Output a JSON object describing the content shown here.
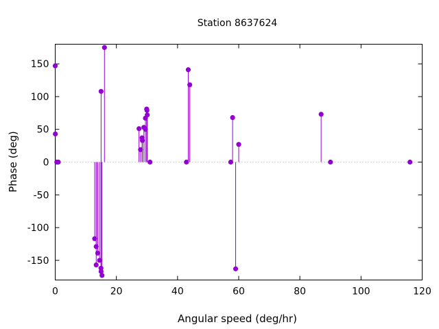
{
  "chart_data": {
    "type": "scatter",
    "title": "Station 8637624",
    "xlabel": "Angular speed (deg/hr)",
    "ylabel": "Phase (deg)",
    "xlim": [
      0,
      120
    ],
    "ylim": [
      -180,
      180
    ],
    "xticks": [
      0,
      20,
      40,
      60,
      80,
      100,
      120
    ],
    "yticks": [
      -150,
      -100,
      -50,
      0,
      50,
      100,
      150
    ],
    "grid": false,
    "zero_line": "dotted",
    "style": "impulses with points",
    "color": "#9400d3",
    "points": [
      {
        "x": 0.0,
        "y": 147
      },
      {
        "x": 0.04,
        "y": 43
      },
      {
        "x": 0.5,
        "y": 0
      },
      {
        "x": 0.6,
        "y": 0
      },
      {
        "x": 1.0,
        "y": 0
      },
      {
        "x": 12.9,
        "y": -117
      },
      {
        "x": 13.4,
        "y": -157
      },
      {
        "x": 13.4,
        "y": -129
      },
      {
        "x": 13.9,
        "y": -139
      },
      {
        "x": 14.5,
        "y": -150
      },
      {
        "x": 14.96,
        "y": -162
      },
      {
        "x": 15.0,
        "y": 108
      },
      {
        "x": 15.0,
        "y": -167
      },
      {
        "x": 15.3,
        "y": -173
      },
      {
        "x": 16.1,
        "y": 175
      },
      {
        "x": 27.4,
        "y": 51
      },
      {
        "x": 27.9,
        "y": 19
      },
      {
        "x": 28.4,
        "y": 37
      },
      {
        "x": 28.5,
        "y": 33
      },
      {
        "x": 29.0,
        "y": 53
      },
      {
        "x": 29.5,
        "y": 50
      },
      {
        "x": 29.5,
        "y": 67
      },
      {
        "x": 29.9,
        "y": 81
      },
      {
        "x": 30.0,
        "y": 79
      },
      {
        "x": 30.1,
        "y": 72
      },
      {
        "x": 31.0,
        "y": 0
      },
      {
        "x": 42.9,
        "y": 0
      },
      {
        "x": 43.5,
        "y": 141
      },
      {
        "x": 44.0,
        "y": 118
      },
      {
        "x": 57.4,
        "y": 0
      },
      {
        "x": 58.0,
        "y": 68
      },
      {
        "x": 59.0,
        "y": -163
      },
      {
        "x": 60.0,
        "y": 27
      },
      {
        "x": 86.95,
        "y": 73
      },
      {
        "x": 90.0,
        "y": 0
      },
      {
        "x": 116.0,
        "y": 0
      }
    ]
  }
}
